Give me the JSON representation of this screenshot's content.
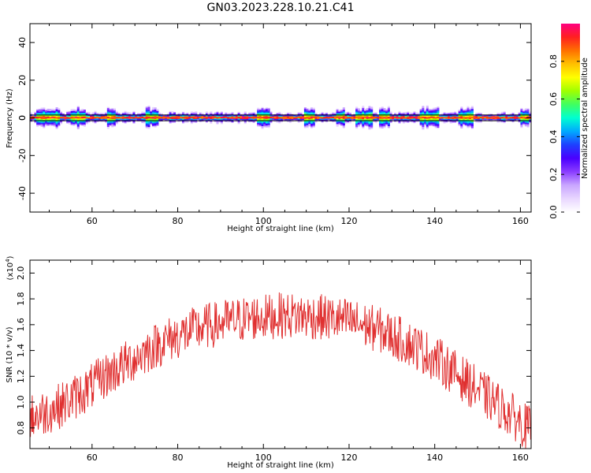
{
  "figure": {
    "title": "GN03.2023.228.10.21.C41"
  },
  "colors": {
    "axis": "#000000",
    "snr_line": "#e03030",
    "spectrogram_background": "#ffffff",
    "colormap": [
      "#ffffff",
      "#e8d6ff",
      "#c9a6ff",
      "#8a3cff",
      "#4a00ff",
      "#1e40ff",
      "#00aaff",
      "#00ffd0",
      "#40ff60",
      "#a0ff00",
      "#ffff00",
      "#ffc000",
      "#ff7000",
      "#ff2020",
      "#ff0080"
    ]
  },
  "chart_data": [
    {
      "type": "heatmap",
      "title": "GN03.2023.228.10.21.C41",
      "xlabel": "Height of straight line (km)",
      "ylabel": "Frequency (Hz)",
      "xlim": [
        45.5,
        162.5
      ],
      "ylim": [
        -50,
        50
      ],
      "xticks": [
        60,
        80,
        100,
        120,
        140,
        160
      ],
      "yticks": [
        -40,
        -20,
        0,
        20,
        40
      ],
      "colorbar": {
        "label": "Normalized spectral amplitude",
        "range": [
          0.0,
          1.0
        ],
        "ticks": [
          "0.0",
          "0.2",
          "0.4",
          "0.6",
          "0.8"
        ],
        "tick_values": [
          0.0,
          0.2,
          0.4,
          0.6,
          0.8
        ]
      },
      "band": {
        "center_hz": 0,
        "core_halfwidth_hz": 0.6,
        "spread_halfwidth_hz": 4
      },
      "wide_spread_km": [
        [
          47,
          52
        ],
        [
          55,
          58
        ],
        [
          63.5,
          65
        ],
        [
          72.5,
          75
        ],
        [
          98.5,
          101
        ],
        [
          109.5,
          111.5
        ],
        [
          117,
          118.5
        ],
        [
          121.5,
          125
        ],
        [
          127,
          129
        ],
        [
          136.5,
          140.5
        ],
        [
          145.5,
          148.5
        ],
        [
          160,
          161.5
        ]
      ]
    },
    {
      "type": "line",
      "xlabel": "Height of straight line (km)",
      "ylabel": "SNR (10 * v/v)",
      "scale_label": "(x10",
      "scale_exponent": "4",
      "xlim": [
        45.5,
        162.5
      ],
      "ylim": [
        0.64,
        2.1
      ],
      "xticks": [
        60,
        80,
        100,
        120,
        140,
        160
      ],
      "yticks": [
        0.8,
        1.0,
        1.2,
        1.4,
        1.6,
        1.8,
        2.0
      ],
      "ytick_labels": [
        "0.8",
        "1.0",
        "1.2",
        "1.4",
        "1.6",
        "1.8",
        "2.0"
      ],
      "series": [
        {
          "x": [
            45.5,
            47,
            49,
            51,
            53,
            55,
            57,
            59,
            61,
            63,
            65,
            67,
            69,
            71,
            73,
            75,
            77,
            79,
            81,
            83,
            85,
            87,
            89,
            91,
            93,
            95,
            97,
            99,
            101,
            103,
            105,
            107,
            109,
            111,
            113,
            115,
            117,
            119,
            121,
            123,
            125,
            127,
            129,
            131,
            133,
            135,
            137,
            139,
            141,
            143,
            145,
            147,
            149,
            151,
            153,
            155,
            157,
            159,
            161,
            162.5
          ],
          "values": [
            0.88,
            0.9,
            0.92,
            0.95,
            0.98,
            1.02,
            1.06,
            1.1,
            1.15,
            1.2,
            1.24,
            1.28,
            1.32,
            1.36,
            1.4,
            1.44,
            1.47,
            1.5,
            1.52,
            1.55,
            1.57,
            1.59,
            1.6,
            1.62,
            1.63,
            1.64,
            1.65,
            1.66,
            1.66,
            1.67,
            1.67,
            1.67,
            1.67,
            1.66,
            1.66,
            1.65,
            1.64,
            1.63,
            1.62,
            1.6,
            1.58,
            1.56,
            1.53,
            1.5,
            1.47,
            1.44,
            1.4,
            1.36,
            1.32,
            1.27,
            1.22,
            1.17,
            1.12,
            1.07,
            1.02,
            0.97,
            0.92,
            0.87,
            0.82,
            0.78
          ],
          "noise_amplitude": 0.18
        }
      ]
    }
  ]
}
